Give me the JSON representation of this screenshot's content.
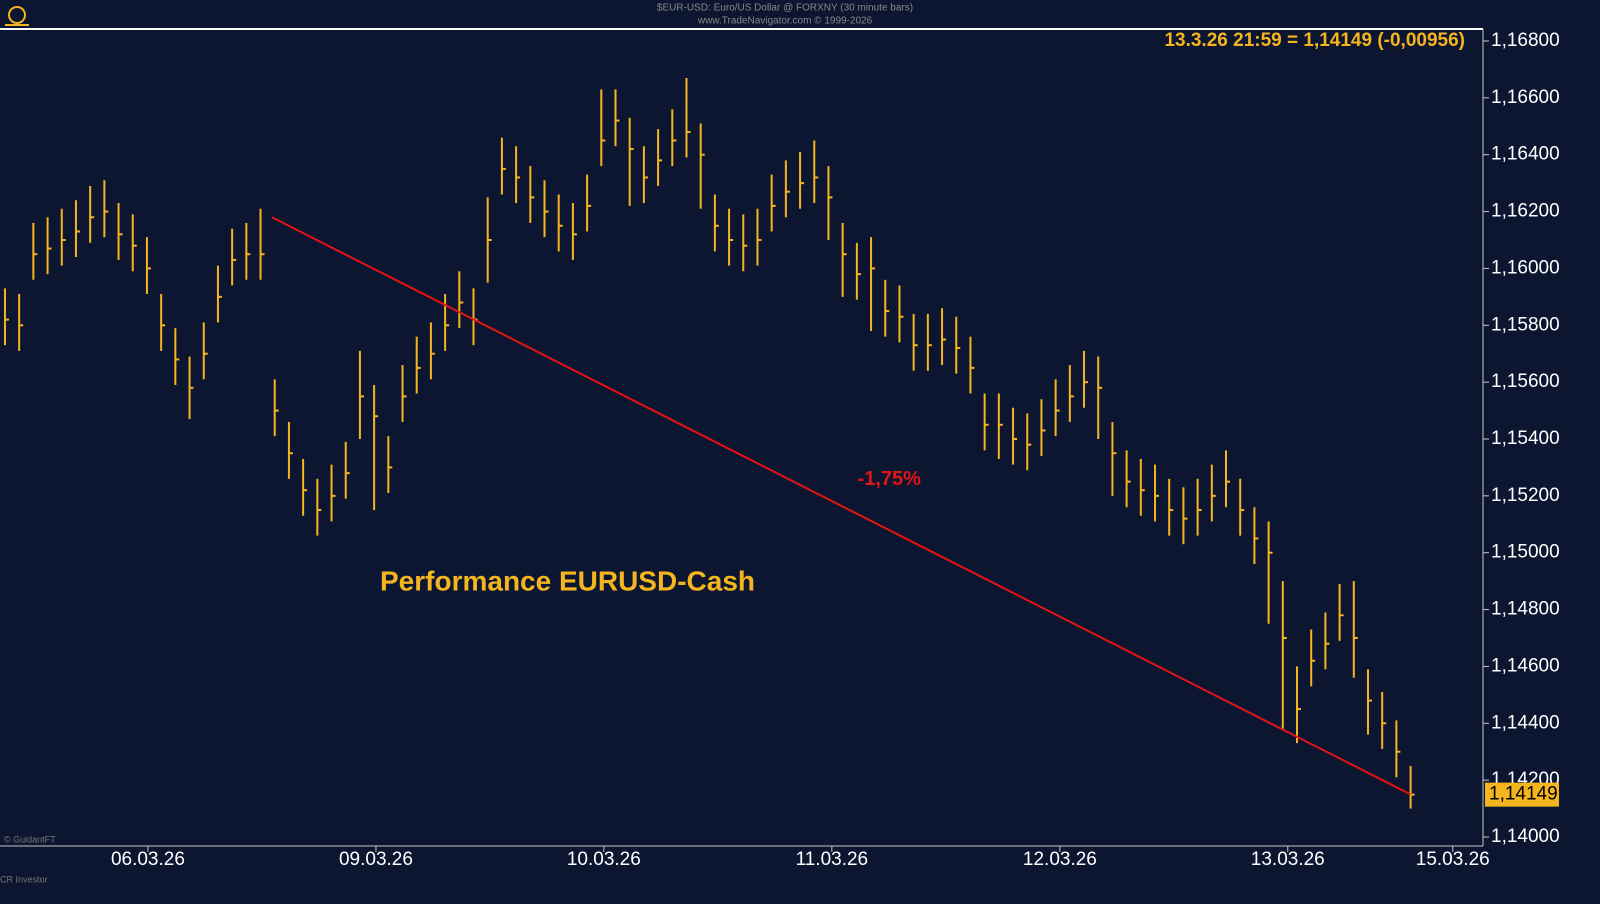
{
  "chart_data": {
    "type": "ohlc",
    "title": "$EUR-USD: Euro/US Dollar @ FORXNY  (30 minute bars)",
    "subtitle": "www.TradeNavigator.com © 1999-2026",
    "info": "13.3.26 21:59 = 1,14149 (-0,00956)",
    "annotation": "Performance EURUSD-Cash",
    "copyright": "© GuidantFT",
    "footer": "CR Investor",
    "color": "#f5b51e",
    "series": {
      "high": [
        1.1593,
        1.1591,
        1.1616,
        1.1618,
        1.1621,
        1.1624,
        1.1629,
        1.1631,
        1.1623,
        1.1619,
        1.1611,
        1.1591,
        1.1579,
        1.1569,
        1.1581,
        1.1601,
        1.1614,
        1.1616,
        1.1621,
        1.1561,
        1.1546,
        1.1533,
        1.1526,
        1.1531,
        1.1539,
        1.1571,
        1.1559,
        1.1541,
        1.1566,
        1.1576,
        1.1581,
        1.1591,
        1.1599,
        1.1593,
        1.1625,
        1.1646,
        1.1643,
        1.1636,
        1.1631,
        1.1626,
        1.1623,
        1.1633,
        1.1663,
        1.1663,
        1.1653,
        1.1643,
        1.1649,
        1.1656,
        1.1667,
        1.1651,
        1.1626,
        1.1621,
        1.1619,
        1.1621,
        1.1633,
        1.1638,
        1.1641,
        1.1645,
        1.1636,
        1.1616,
        1.1609,
        1.1611,
        1.1596,
        1.1594,
        1.1584,
        1.1584,
        1.1586,
        1.1583,
        1.1576,
        1.1556,
        1.1556,
        1.1551,
        1.1549,
        1.1554,
        1.1561,
        1.1566,
        1.1571,
        1.1569,
        1.1546,
        1.1536,
        1.1533,
        1.1531,
        1.1526,
        1.1523,
        1.1526,
        1.1531,
        1.1536,
        1.1526,
        1.1516,
        1.1511,
        1.149,
        1.146,
        1.1473,
        1.1479,
        1.1489,
        1.149,
        1.1459,
        1.1451,
        1.1441,
        1.1425
      ],
      "low": [
        1.1573,
        1.1571,
        1.1596,
        1.1598,
        1.1601,
        1.1604,
        1.1609,
        1.1611,
        1.1603,
        1.1599,
        1.1591,
        1.1571,
        1.1559,
        1.1547,
        1.1561,
        1.1581,
        1.1594,
        1.1596,
        1.1596,
        1.1541,
        1.1526,
        1.1513,
        1.1506,
        1.1511,
        1.1519,
        1.154,
        1.1515,
        1.1521,
        1.1546,
        1.1556,
        1.1561,
        1.1571,
        1.1579,
        1.1573,
        1.1595,
        1.1626,
        1.1623,
        1.1616,
        1.1611,
        1.1606,
        1.1603,
        1.1613,
        1.1636,
        1.1643,
        1.1622,
        1.1623,
        1.1629,
        1.1636,
        1.1639,
        1.1621,
        1.1606,
        1.1601,
        1.1599,
        1.1601,
        1.1613,
        1.1618,
        1.1621,
        1.1623,
        1.161,
        1.159,
        1.1589,
        1.1578,
        1.1576,
        1.1574,
        1.1564,
        1.1564,
        1.1566,
        1.1563,
        1.1556,
        1.1536,
        1.1533,
        1.1531,
        1.1529,
        1.1534,
        1.1541,
        1.1546,
        1.1551,
        1.154,
        1.152,
        1.1516,
        1.1513,
        1.1511,
        1.1506,
        1.1503,
        1.1506,
        1.1511,
        1.1516,
        1.1506,
        1.1496,
        1.1475,
        1.1438,
        1.1433,
        1.1453,
        1.1459,
        1.1469,
        1.1456,
        1.1436,
        1.1431,
        1.1421,
        1.141
      ],
      "close": [
        1.1582,
        1.158,
        1.1605,
        1.1607,
        1.161,
        1.1613,
        1.1618,
        1.162,
        1.1612,
        1.1608,
        1.16,
        1.158,
        1.1568,
        1.1558,
        1.157,
        1.159,
        1.1603,
        1.1605,
        1.1605,
        1.155,
        1.1535,
        1.1522,
        1.1515,
        1.152,
        1.1528,
        1.1555,
        1.1548,
        1.153,
        1.1555,
        1.1565,
        1.157,
        1.158,
        1.1588,
        1.1582,
        1.161,
        1.1635,
        1.1632,
        1.1625,
        1.162,
        1.1615,
        1.1612,
        1.1622,
        1.1645,
        1.1652,
        1.1642,
        1.1632,
        1.1638,
        1.1645,
        1.1648,
        1.164,
        1.1615,
        1.161,
        1.1608,
        1.161,
        1.1622,
        1.1627,
        1.163,
        1.1632,
        1.1625,
        1.1605,
        1.1598,
        1.16,
        1.1585,
        1.1583,
        1.1573,
        1.1573,
        1.1575,
        1.1572,
        1.1565,
        1.1545,
        1.1545,
        1.154,
        1.1538,
        1.1543,
        1.155,
        1.1555,
        1.156,
        1.1558,
        1.1535,
        1.1525,
        1.1522,
        1.152,
        1.1515,
        1.1512,
        1.1515,
        1.152,
        1.1525,
        1.1515,
        1.1505,
        1.15,
        1.147,
        1.1445,
        1.1462,
        1.1468,
        1.1478,
        1.147,
        1.1448,
        1.144,
        1.143,
        1.14149
      ]
    },
    "last_price": {
      "value": 1.14149,
      "label": "1,14149"
    },
    "trendline": {
      "x": [
        18.8,
        99
      ],
      "y": [
        1.1618,
        1.1415
      ],
      "color": "#e31414",
      "label": "-1,75%"
    },
    "xlim": [
      -0.35,
      104.1
    ],
    "xticks": [
      {
        "value": 10.07,
        "label": "06.03.26"
      },
      {
        "value": 26.13,
        "label": "09.03.26"
      },
      {
        "value": 42.18,
        "label": "10.03.26"
      },
      {
        "value": 58.24,
        "label": "11.03.26"
      },
      {
        "value": 74.3,
        "label": "12.03.26"
      },
      {
        "value": 90.35,
        "label": "13.03.26"
      },
      {
        "value": 101.97,
        "label": "15.03.26"
      }
    ],
    "ylim": [
      1.14,
      1.168
    ],
    "yticks": [
      {
        "value": 1.14,
        "label": "1,14000"
      },
      {
        "value": 1.142,
        "label": "1,14200"
      },
      {
        "value": 1.144,
        "label": "1,14400"
      },
      {
        "value": 1.146,
        "label": "1,14600"
      },
      {
        "value": 1.148,
        "label": "1,14800"
      },
      {
        "value": 1.15,
        "label": "1,15000"
      },
      {
        "value": 1.152,
        "label": "1,15200"
      },
      {
        "value": 1.154,
        "label": "1,15400"
      },
      {
        "value": 1.156,
        "label": "1,15600"
      },
      {
        "value": 1.158,
        "label": "1,15800"
      },
      {
        "value": 1.16,
        "label": "1,16000"
      },
      {
        "value": 1.162,
        "label": "1,16200"
      },
      {
        "value": 1.164,
        "label": "1,16400"
      },
      {
        "value": 1.166,
        "label": "1,16600"
      },
      {
        "value": 1.168,
        "label": "1,16800"
      }
    ]
  }
}
